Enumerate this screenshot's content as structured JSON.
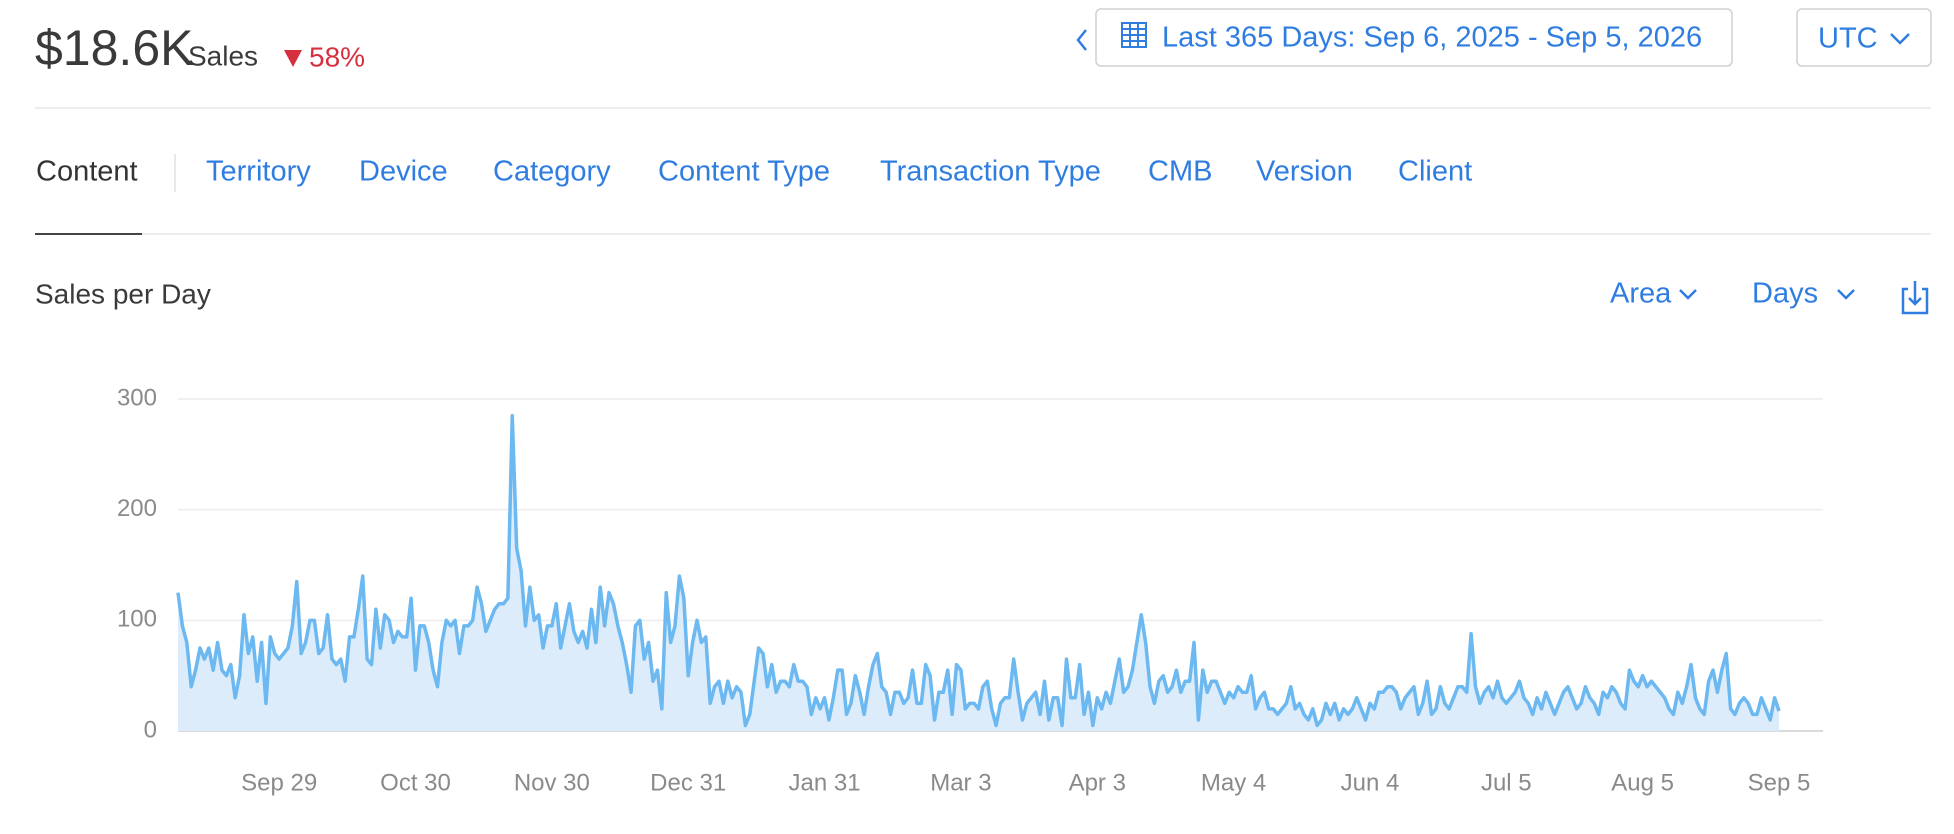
{
  "header": {
    "amount": "$18.6K",
    "label": "Sales",
    "change": "58%",
    "date_range": "Last 365 Days: Sep 6, 2025 - Sep 5, 2026",
    "timezone": "UTC"
  },
  "tabs": [
    "Content",
    "Territory",
    "Device",
    "Category",
    "Content Type",
    "Transaction Type",
    "CMB",
    "Version",
    "Client"
  ],
  "controls": {
    "chart_style": "Area",
    "interval": "Days"
  },
  "chart_data": {
    "type": "area",
    "title": "Sales per Day",
    "color": "#6cb8f0",
    "fill": "#dcecfb",
    "grid": true,
    "ylim": [
      0,
      300
    ],
    "yticks": [
      0,
      100,
      200,
      300
    ],
    "categories": [
      null,
      null,
      null,
      null,
      null,
      null,
      null,
      null,
      null,
      null,
      null,
      null,
      null,
      null,
      null,
      null,
      null,
      null,
      null,
      null,
      null,
      null,
      null,
      "Sep 29",
      null,
      null,
      null,
      null,
      null,
      null,
      null,
      null,
      null,
      null,
      null,
      null,
      null,
      null,
      null,
      null,
      null,
      null,
      null,
      null,
      null,
      null,
      null,
      null,
      null,
      null,
      null,
      null,
      null,
      null,
      "Oct 30",
      null,
      null,
      null,
      null,
      null,
      null,
      null,
      null,
      null,
      null,
      null,
      null,
      null,
      null,
      null,
      null,
      null,
      null,
      null,
      null,
      null,
      null,
      null,
      null,
      null,
      null,
      null,
      null,
      null,
      null,
      "Nov 30",
      null,
      null,
      null,
      null,
      null,
      null,
      null,
      null,
      null,
      null,
      null,
      null,
      null,
      null,
      null,
      null,
      null,
      null,
      null,
      null,
      null,
      null,
      null,
      null,
      null,
      null,
      null,
      null,
      null,
      null,
      "Dec 31",
      null,
      null,
      null,
      null,
      null,
      null,
      null,
      null,
      null,
      null,
      null,
      null,
      null,
      null,
      null,
      null,
      null,
      null,
      null,
      null,
      null,
      null,
      null,
      null,
      null,
      null,
      null,
      null,
      null,
      null,
      "Jan 31",
      null,
      null,
      null,
      null,
      null,
      null,
      null,
      null,
      null,
      null,
      null,
      null,
      null,
      null,
      null,
      null,
      null,
      null,
      null,
      null,
      null,
      null,
      null,
      null,
      null,
      null,
      null,
      null,
      null,
      null,
      "Mar 3",
      null,
      null,
      null,
      null,
      null,
      null,
      null,
      null,
      null,
      null,
      null,
      null,
      null,
      null,
      null,
      null,
      null,
      null,
      null,
      null,
      null,
      null,
      null,
      null,
      null,
      null,
      null,
      null,
      null,
      null,
      "Apr 3",
      null,
      null,
      null,
      null,
      null,
      null,
      null,
      null,
      null,
      null,
      null,
      null,
      null,
      null,
      null,
      null,
      null,
      null,
      null,
      null,
      null,
      null,
      null,
      null,
      null,
      null,
      null,
      null,
      null,
      null,
      "May 4",
      null,
      null,
      null,
      null,
      null,
      null,
      null,
      null,
      null,
      null,
      null,
      null,
      null,
      null,
      null,
      null,
      null,
      null,
      null,
      null,
      null,
      null,
      null,
      null,
      null,
      null,
      null,
      null,
      null,
      null,
      "Jun 4",
      null,
      null,
      null,
      null,
      null,
      null,
      null,
      null,
      null,
      null,
      null,
      null,
      null,
      null,
      null,
      null,
      null,
      null,
      null,
      null,
      null,
      null,
      null,
      null,
      null,
      null,
      null,
      null,
      null,
      null,
      "Jul 5",
      null,
      null,
      null,
      null,
      null,
      null,
      null,
      null,
      null,
      null,
      null,
      null,
      null,
      null,
      null,
      null,
      null,
      null,
      null,
      null,
      null,
      null,
      null,
      null,
      null,
      null,
      null,
      null,
      null,
      null,
      "Aug 5",
      null,
      null,
      null,
      null,
      null,
      null,
      null,
      null,
      null,
      null,
      null,
      null,
      null,
      null,
      null,
      null,
      null,
      null,
      null,
      null,
      null,
      null,
      null,
      null,
      null,
      null,
      null,
      null,
      null,
      null,
      "Sep 5"
    ],
    "values": [
      125,
      95,
      80,
      40,
      55,
      75,
      65,
      75,
      55,
      80,
      55,
      50,
      60,
      30,
      50,
      105,
      70,
      85,
      45,
      80,
      25,
      85,
      70,
      65,
      70,
      75,
      95,
      135,
      70,
      80,
      100,
      100,
      70,
      75,
      105,
      65,
      60,
      65,
      45,
      85,
      85,
      110,
      140,
      65,
      60,
      110,
      75,
      105,
      100,
      80,
      90,
      85,
      85,
      120,
      55,
      95,
      95,
      80,
      55,
      40,
      80,
      100,
      95,
      100,
      70,
      95,
      95,
      100,
      130,
      115,
      90,
      100,
      110,
      115,
      115,
      120,
      285,
      165,
      145,
      95,
      130,
      100,
      105,
      75,
      95,
      95,
      115,
      75,
      95,
      115,
      90,
      80,
      90,
      75,
      110,
      80,
      130,
      95,
      125,
      115,
      95,
      80,
      60,
      35,
      95,
      100,
      65,
      80,
      45,
      55,
      20,
      125,
      80,
      95,
      140,
      120,
      50,
      80,
      100,
      80,
      85,
      25,
      40,
      45,
      25,
      45,
      30,
      40,
      35,
      5,
      15,
      45,
      75,
      70,
      40,
      60,
      35,
      45,
      45,
      40,
      60,
      45,
      45,
      40,
      15,
      30,
      20,
      30,
      10,
      30,
      55,
      55,
      15,
      25,
      50,
      35,
      15,
      40,
      60,
      70,
      40,
      35,
      15,
      35,
      35,
      25,
      30,
      55,
      25,
      25,
      60,
      50,
      10,
      35,
      35,
      55,
      15,
      60,
      55,
      20,
      25,
      25,
      20,
      40,
      45,
      20,
      5,
      25,
      30,
      30,
      65,
      35,
      10,
      25,
      30,
      35,
      15,
      45,
      10,
      30,
      30,
      5,
      65,
      30,
      30,
      60,
      15,
      35,
      5,
      30,
      20,
      35,
      25,
      45,
      65,
      35,
      40,
      55,
      80,
      105,
      80,
      40,
      25,
      45,
      50,
      35,
      40,
      55,
      35,
      45,
      45,
      80,
      10,
      55,
      35,
      45,
      45,
      35,
      25,
      35,
      30,
      40,
      35,
      35,
      50,
      20,
      30,
      35,
      20,
      20,
      15,
      20,
      25,
      40,
      20,
      25,
      15,
      10,
      20,
      5,
      10,
      25,
      15,
      25,
      10,
      20,
      15,
      20,
      30,
      20,
      10,
      25,
      20,
      35,
      35,
      40,
      40,
      35,
      20,
      30,
      35,
      40,
      15,
      25,
      45,
      15,
      20,
      40,
      25,
      20,
      30,
      40,
      40,
      35,
      88,
      40,
      25,
      35,
      40,
      30,
      45,
      30,
      25,
      30,
      35,
      45,
      30,
      25,
      15,
      30,
      20,
      35,
      25,
      15,
      25,
      35,
      40,
      30,
      20,
      25,
      40,
      30,
      25,
      15,
      35,
      30,
      40,
      35,
      25,
      20,
      55,
      45,
      40,
      50,
      40,
      45,
      40,
      35,
      30,
      20,
      15,
      35,
      25,
      40,
      60,
      30,
      20,
      15,
      45,
      55,
      35,
      55,
      70,
      20,
      15,
      25,
      30,
      25,
      15,
      15,
      30,
      20,
      10,
      30,
      18
    ]
  }
}
